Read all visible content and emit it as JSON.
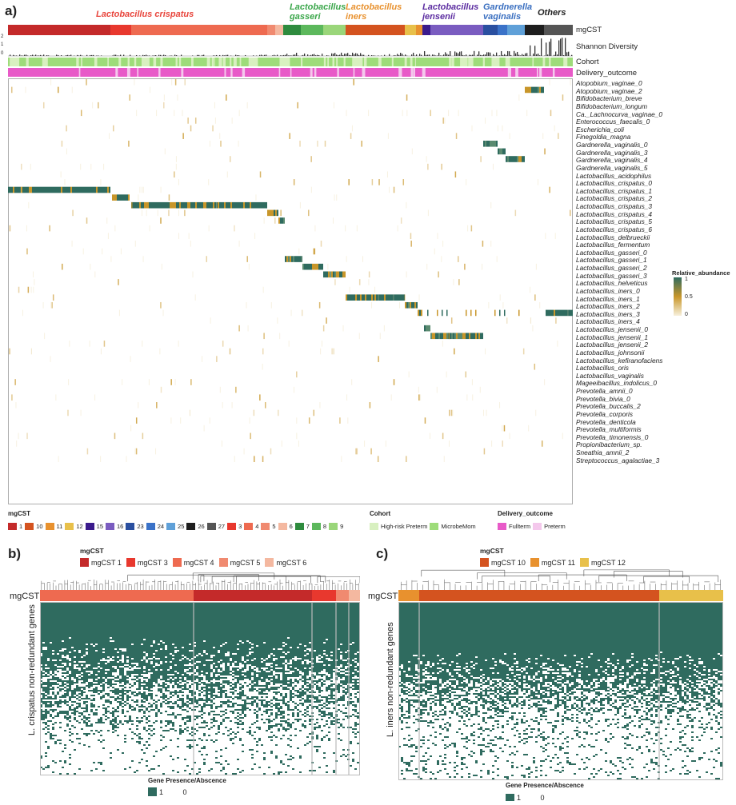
{
  "panel_a": {
    "letter": "a)",
    "species_headers": [
      {
        "label": "Lactobacillus crispatus",
        "color": "#e8453c",
        "x": 120,
        "y": 12
      },
      {
        "label": "Lactobacillus gasseri",
        "color": "#3aa64a",
        "x": 362,
        "y": 3
      },
      {
        "label": "Lactobacillus iners",
        "color": "#e8912e",
        "x": 432,
        "y": 3
      },
      {
        "label": "Lactobacillus jensenii",
        "color": "#5b2ca0",
        "x": 528,
        "y": 3
      },
      {
        "label": "Gardnerella vaginalis",
        "color": "#3a6fc0",
        "x": 604,
        "y": 3
      },
      {
        "label": "Others",
        "color": "#222222",
        "x": 672,
        "y": 10
      }
    ],
    "track_labels": {
      "mgcst": "mgCST",
      "shannon": "Shannon Diversity",
      "cohort": "Cohort",
      "delivery": "Delivery_outcome"
    },
    "shannon_ticks": [
      "2",
      "1",
      "0"
    ],
    "taxa": [
      "Atopobium_vaginae_0",
      "Atopobium_vaginae_2",
      "Bifidobacterium_breve",
      "Bifidobacterium_longum",
      "Ca._Lachnocurva_vaginae_0",
      "Enterococcus_faecalis_0",
      "Escherichia_coli",
      "Finegoldia_magna",
      "Gardnerella_vaginalis_0",
      "Gardnerella_vaginalis_3",
      "Gardnerella_vaginalis_4",
      "Gardnerella_vaginalis_5",
      "Lactobacillus_acidophilus",
      "Lactobacillus_crispatus_0",
      "Lactobacillus_crispatus_1",
      "Lactobacillus_crispatus_2",
      "Lactobacillus_crispatus_3",
      "Lactobacillus_crispatus_4",
      "Lactobacillus_crispatus_5",
      "Lactobacillus_crispatus_6",
      "Lactobacillus_delbrueckii",
      "Lactobacillus_fermentum",
      "Lactobacillus_gasseri_0",
      "Lactobacillus_gasseri_1",
      "Lactobacillus_gasseri_2",
      "Lactobacillus_gasseri_3",
      "Lactobacillus_helveticus",
      "Lactobacillus_iners_0",
      "Lactobacillus_iners_1",
      "Lactobacillus_iners_2",
      "Lactobacillus_iners_3",
      "Lactobacillus_iners_4",
      "Lactobacillus_jensenii_0",
      "Lactobacillus_jensenii_1",
      "Lactobacillus_jensenii_2",
      "Lactobacillus_johnsonii",
      "Lactobacillus_kefiranofaciens",
      "Lactobacillus_oris",
      "Lactobacillus_vaginalis",
      "Mageeibacillus_indolicus_0",
      "Prevotella_amnii_0",
      "Prevotella_bivia_0",
      "Prevotella_buccalis_2",
      "Prevotella_corporis",
      "Prevotella_denticola",
      "Prevotella_multiformis",
      "Prevotella_timonensis_0",
      "Propionibacterium_sp.",
      "Sneathia_amnii_2",
      "Streptococcus_agalactiae_3"
    ],
    "abundance_legend": {
      "title": "Relative_abundance",
      "ticks": [
        "1",
        "0.5",
        "0"
      ]
    },
    "legend_mgcst": {
      "title": "mgCST",
      "items": [
        {
          "label": "1",
          "color": "#c42a2a"
        },
        {
          "label": "10",
          "color": "#d4531f"
        },
        {
          "label": "11",
          "color": "#e8912e"
        },
        {
          "label": "12",
          "color": "#e8c04a"
        },
        {
          "label": "15",
          "color": "#3a1a8c"
        },
        {
          "label": "16",
          "color": "#7a5cc0"
        },
        {
          "label": "23",
          "color": "#2a4fa0"
        },
        {
          "label": "24",
          "color": "#3a72c8"
        },
        {
          "label": "25",
          "color": "#5fa0d8"
        },
        {
          "label": "26",
          "color": "#1e1e1e"
        },
        {
          "label": "27",
          "color": "#555555"
        },
        {
          "label": "3",
          "color": "#e8382e"
        },
        {
          "label": "4",
          "color": "#ee6a50"
        },
        {
          "label": "5",
          "color": "#f08a70"
        },
        {
          "label": "6",
          "color": "#f4b8a0"
        },
        {
          "label": "7",
          "color": "#2e8b3e"
        },
        {
          "label": "8",
          "color": "#5cb85c"
        },
        {
          "label": "9",
          "color": "#9ad67a"
        }
      ]
    },
    "legend_cohort": {
      "title": "Cohort",
      "items": [
        {
          "label": "High-risk Preterm",
          "color": "#d8f0c0"
        },
        {
          "label": "MicrobeMom",
          "color": "#9edc7a"
        }
      ]
    },
    "legend_delivery": {
      "title": "Delivery_outcome",
      "items": [
        {
          "label": "Fullterm",
          "color": "#e85ac8"
        },
        {
          "label": "Preterm",
          "color": "#f4c8ec"
        }
      ]
    },
    "colors": {
      "teal": "#2f6b5f",
      "gold": "#c8962a",
      "cohort_main": "#9edc7a",
      "cohort_alt": "#d8f0c0",
      "delivery_main": "#e85ac8",
      "delivery_alt": "#f4c8ec"
    }
  },
  "panel_b": {
    "letter": "b)",
    "legend_title": "mgCST",
    "legend_items": [
      {
        "label": "mgCST 1",
        "color": "#c42a2a"
      },
      {
        "label": "mgCST 3",
        "color": "#e8382e"
      },
      {
        "label": "mgCST 4",
        "color": "#ee6a50"
      },
      {
        "label": "mgCST 5",
        "color": "#f08a70"
      },
      {
        "label": "mgCST 6",
        "color": "#f4b8a0"
      }
    ],
    "bar_label": "mgCST",
    "y_label": "L. crispatus non-redundant genes",
    "gene_legend_title": "Gene Presence/Abscence",
    "gene_legend_items": [
      "1",
      "0"
    ]
  },
  "panel_c": {
    "letter": "c)",
    "legend_title": "mgCST",
    "legend_items": [
      {
        "label": "mgCST 10",
        "color": "#d4531f"
      },
      {
        "label": "mgCST 11",
        "color": "#e8912e"
      },
      {
        "label": "mgCST 12",
        "color": "#e8c04a"
      }
    ],
    "bar_label": "mgCST",
    "y_label": "L. iners non-redundant genes",
    "gene_legend_title": "Gene Presence/Abscence",
    "gene_legend_items": [
      "1",
      "0"
    ]
  },
  "chart_data": [
    {
      "type": "heatmap",
      "panel": "a",
      "title": "",
      "ylabel": "",
      "rows": "taxa (see panel_a.taxa)",
      "value_range": [
        0,
        1
      ],
      "legend": "Relative_abundance",
      "dominant_taxon_by_mgcst_block": [
        {
          "mgcst_group": "Lactobacillus crispatus",
          "taxa": [
            "Lactobacillus_crispatus_1",
            "Lactobacillus_crispatus_2",
            "Lactobacillus_crispatus_3",
            "Lactobacillus_crispatus_4",
            "Lactobacillus_crispatus_5",
            "Lactobacillus_crispatus_6"
          ]
        },
        {
          "mgcst_group": "Lactobacillus gasseri",
          "taxa": [
            "Lactobacillus_gasseri_1",
            "Lactobacillus_gasseri_2",
            "Lactobacillus_gasseri_3"
          ]
        },
        {
          "mgcst_group": "Lactobacillus iners",
          "taxa": [
            "Lactobacillus_iners_1",
            "Lactobacillus_iners_3",
            "Lactobacillus_iners_4"
          ]
        },
        {
          "mgcst_group": "Lactobacillus jensenii",
          "taxa": [
            "Lactobacillus_jensenii_1",
            "Lactobacillus_jensenii_2"
          ]
        },
        {
          "mgcst_group": "Gardnerella vaginalis",
          "taxa": [
            "Gardnerella_vaginalis_3",
            "Gardnerella_vaginalis_4",
            "Gardnerella_vaginalis_5"
          ]
        },
        {
          "mgcst_group": "Others",
          "taxa": [
            "Bifidobacterium_breve",
            "Lactobacillus_iners_4"
          ]
        }
      ]
    },
    {
      "type": "heatmap",
      "panel": "b",
      "ylabel": "L. crispatus non-redundant genes",
      "legend": "Gene Presence/Abscence",
      "values": [
        "1",
        "0"
      ],
      "column_groups": [
        "mgCST 4",
        "mgCST 1",
        "mgCST 3",
        "mgCST 5",
        "mgCST 6"
      ]
    },
    {
      "type": "heatmap",
      "panel": "c",
      "ylabel": "L. iners non-redundant genes",
      "legend": "Gene Presence/Abscence",
      "values": [
        "1",
        "0"
      ],
      "column_groups": [
        "mgCST 11",
        "mgCST 10",
        "mgCST 12"
      ]
    }
  ]
}
